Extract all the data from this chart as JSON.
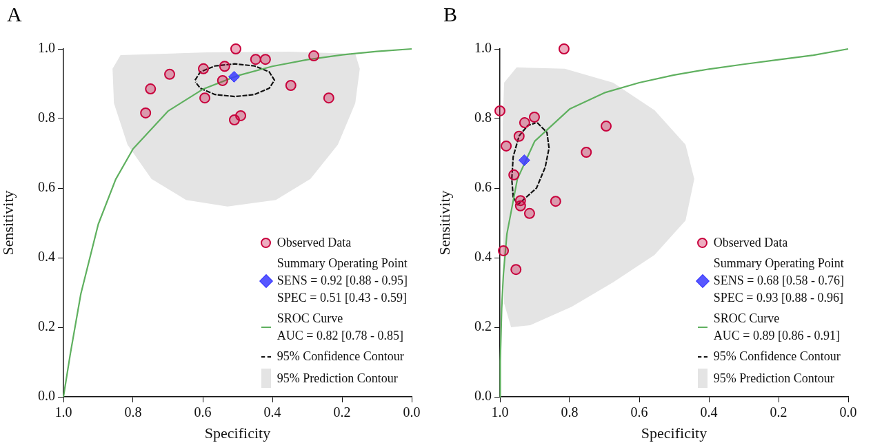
{
  "chart_data": [
    {
      "type": "scatter",
      "title": "A",
      "xlabel": "Specificity",
      "ylabel": "Sensitivity",
      "xlim": [
        1,
        0
      ],
      "ylim": [
        0,
        1
      ],
      "xticks": [
        {
          "value": 1,
          "label": "1.0"
        },
        {
          "value": 0.8,
          "label": "0.8"
        },
        {
          "value": 0.6,
          "label": "0.6"
        },
        {
          "value": 0.4,
          "label": "0.4"
        },
        {
          "value": 0.2,
          "label": "0.2"
        },
        {
          "value": 0,
          "label": "0.0"
        }
      ],
      "yticks": [
        {
          "value": 0,
          "label": "0.0"
        },
        {
          "value": 0.2,
          "label": "0.2"
        },
        {
          "value": 0.4,
          "label": "0.4"
        },
        {
          "value": 0.6,
          "label": "0.6"
        },
        {
          "value": 0.8,
          "label": "0.8"
        },
        {
          "value": 1,
          "label": "1.0"
        }
      ],
      "grid": false,
      "legend": "bottom right",
      "series": [
        {
          "name": "Observed Data",
          "type": "scatter",
          "marker": "circle",
          "color": "#c8003c",
          "x": [
            0.764,
            0.75,
            0.695,
            0.598,
            0.594,
            0.537,
            0.543,
            0.505,
            0.509,
            0.491,
            0.448,
            0.42,
            0.347,
            0.281,
            0.238
          ],
          "values": [
            0.816,
            0.885,
            0.927,
            0.943,
            0.859,
            0.95,
            0.909,
            1.0,
            0.796,
            0.808,
            0.97,
            0.97,
            0.895,
            0.98,
            0.859
          ]
        },
        {
          "name": "Summary Operating Point\nSENS = 0.92 [0.88 - 0.95]\nSPEC = 0.51 [0.43 - 0.59]",
          "type": "scatter",
          "marker": "diamond",
          "color": "#3a3aff",
          "x": [
            0.51
          ],
          "values": [
            0.92
          ]
        },
        {
          "name": "SROC Curve\nAUC = 0.82 [0.78 - 0.85]",
          "type": "line",
          "marker": "none",
          "line_style": "solid",
          "color": "#5fb05f",
          "x": [
            1,
            0.98,
            0.95,
            0.9,
            0.85,
            0.8,
            0.7,
            0.6,
            0.5,
            0.4,
            0.3,
            0.2,
            0.1,
            0
          ],
          "values": [
            0,
            0.125,
            0.296,
            0.496,
            0.625,
            0.713,
            0.821,
            0.884,
            0.923,
            0.95,
            0.969,
            0.983,
            0.993,
            1
          ]
        },
        {
          "name": "95% Confidence Contour",
          "type": "line",
          "marker": "none",
          "line_style": "dashed",
          "color": "#111111",
          "x": [
            0.622,
            0.607,
            0.565,
            0.508,
            0.451,
            0.409,
            0.394,
            0.409,
            0.451,
            0.508,
            0.565,
            0.607,
            0.621
          ],
          "values": [
            0.91,
            0.934,
            0.951,
            0.957,
            0.951,
            0.934,
            0.91,
            0.887,
            0.869,
            0.863,
            0.869,
            0.887,
            0.905
          ]
        },
        {
          "name": "95% Prediction Contour",
          "type": "area",
          "color": "#e4e4e4",
          "x": [
            0.836,
            0.588,
            0.35,
            0.162,
            0.149,
            0.162,
            0.212,
            0.291,
            0.39,
            0.529,
            0.648,
            0.747,
            0.816,
            0.855,
            0.859,
            0.836
          ],
          "values": [
            0.982,
            0.99,
            0.992,
            0.986,
            0.943,
            0.844,
            0.725,
            0.626,
            0.566,
            0.547,
            0.566,
            0.626,
            0.725,
            0.844,
            0.943,
            0.982
          ]
        }
      ]
    },
    {
      "type": "scatter",
      "title": "B",
      "xlabel": "Specificity",
      "ylabel": "Sensitivity",
      "xlim": [
        1,
        0
      ],
      "ylim": [
        0,
        1
      ],
      "xticks": [
        {
          "value": 1,
          "label": "1.0"
        },
        {
          "value": 0.8,
          "label": "0.8"
        },
        {
          "value": 0.6,
          "label": "0.6"
        },
        {
          "value": 0.4,
          "label": "0.4"
        },
        {
          "value": 0.2,
          "label": "0.2"
        },
        {
          "value": 0,
          "label": "0.0"
        }
      ],
      "yticks": [
        {
          "value": 0,
          "label": "0.0"
        },
        {
          "value": 0.2,
          "label": "0.2"
        },
        {
          "value": 0.4,
          "label": "0.4"
        },
        {
          "value": 0.6,
          "label": "0.6"
        },
        {
          "value": 0.8,
          "label": "0.8"
        },
        {
          "value": 1,
          "label": "1.0"
        }
      ],
      "grid": false,
      "legend": "bottom right",
      "series": [
        {
          "name": "Observed Data",
          "type": "scatter",
          "marker": "circle",
          "color": "#c8003c",
          "x": [
            1.0,
            0.982,
            0.96,
            0.99,
            0.954,
            0.945,
            0.929,
            0.901,
            0.941,
            0.941,
            0.915,
            0.84,
            0.752,
            0.695,
            0.816
          ],
          "values": [
            0.822,
            0.721,
            0.638,
            0.42,
            0.366,
            0.749,
            0.788,
            0.804,
            0.564,
            0.549,
            0.527,
            0.562,
            0.703,
            0.778,
            1.0
          ]
        },
        {
          "name": "Summary Operating Point\nSENS = 0.68 [0.58 - 0.76]\nSPEC = 0.93 [0.88 - 0.96]",
          "type": "scatter",
          "marker": "diamond",
          "color": "#3a3aff",
          "x": [
            0.93
          ],
          "values": [
            0.68
          ]
        },
        {
          "name": "SROC Curve\nAUC = 0.89 [0.86 - 0.91]",
          "type": "line",
          "marker": "none",
          "line_style": "solid",
          "color": "#5fb05f",
          "x": [
            1,
            0.999,
            0.995,
            0.99,
            0.98,
            0.95,
            0.9,
            0.8,
            0.7,
            0.6,
            0.5,
            0.4,
            0.3,
            0.2,
            0.1,
            0
          ],
          "values": [
            0,
            0.102,
            0.254,
            0.353,
            0.468,
            0.626,
            0.735,
            0.827,
            0.874,
            0.903,
            0.925,
            0.942,
            0.956,
            0.969,
            0.982,
            1
          ]
        },
        {
          "name": "95% Confidence Contour",
          "type": "line",
          "marker": "none",
          "line_style": "dashed",
          "color": "#111111",
          "x": [
            0.893,
            0.865,
            0.859,
            0.87,
            0.895,
            0.949,
            0.962,
            0.966,
            0.962,
            0.945,
            0.92,
            0.898
          ],
          "values": [
            0.788,
            0.76,
            0.715,
            0.66,
            0.6,
            0.552,
            0.575,
            0.626,
            0.69,
            0.75,
            0.78,
            0.787
          ]
        },
        {
          "name": "95% Prediction Contour",
          "type": "area",
          "color": "#e4e4e4",
          "x": [
            0.988,
            0.952,
            0.814,
            0.675,
            0.556,
            0.467,
            0.442,
            0.467,
            0.556,
            0.675,
            0.794,
            0.913,
            0.968,
            0.988,
            0.992,
            0.992,
            0.988
          ],
          "values": [
            0.903,
            0.947,
            0.943,
            0.903,
            0.824,
            0.725,
            0.626,
            0.507,
            0.408,
            0.329,
            0.259,
            0.206,
            0.2,
            0.269,
            0.547,
            0.784,
            0.903
          ]
        }
      ]
    }
  ]
}
